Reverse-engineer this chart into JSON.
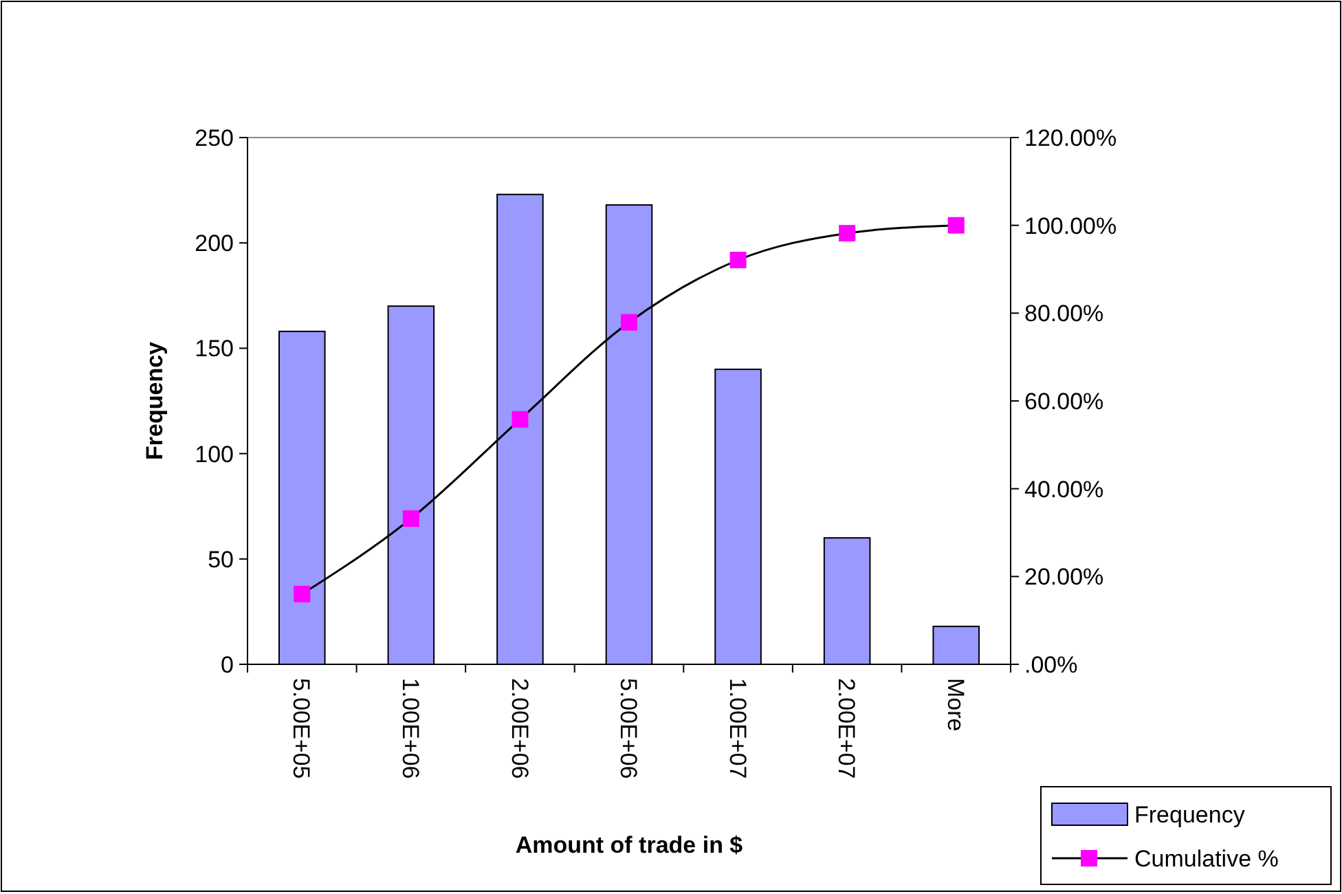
{
  "chart_data": {
    "type": "bar",
    "xlabel": "Amount of trade in $",
    "ylabel": "Frequency",
    "categories": [
      "5.00E+05",
      "1.00E+06",
      "2.00E+06",
      "5.00E+06",
      "1.00E+07",
      "2.00E+07",
      "More"
    ],
    "series": [
      {
        "name": "Frequency",
        "color": "#9999ff",
        "values": [
          158,
          170,
          223,
          218,
          140,
          60,
          18
        ]
      },
      {
        "name": "Cumulative %",
        "type": "line",
        "axis": "y2",
        "color": "#ff00ff",
        "marker": "square",
        "values": [
          16.0,
          33.2,
          55.8,
          77.9,
          92.1,
          98.2,
          100
        ]
      }
    ],
    "ylim": [
      0,
      250
    ],
    "yticks": [
      0,
      50,
      100,
      150,
      200,
      250
    ],
    "y2lim": [
      0,
      120
    ],
    "y2ticks": [
      {
        "value": 0,
        "label": ".00%"
      },
      {
        "value": 20,
        "label": "20.00%"
      },
      {
        "value": 40,
        "label": "40.00%"
      },
      {
        "value": 60,
        "label": "60.00%"
      },
      {
        "value": 80,
        "label": "80.00%"
      },
      {
        "value": 100,
        "label": "100.00%"
      },
      {
        "value": 120,
        "label": "120.00%"
      }
    ],
    "grid": false,
    "legend": "bottom right"
  }
}
